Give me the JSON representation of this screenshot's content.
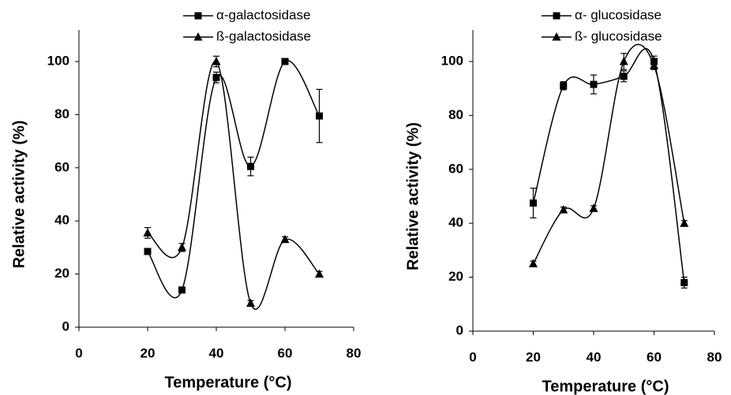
{
  "chart_data": [
    {
      "type": "line",
      "x_label": "Temperature (°C)",
      "y_label": "Relative activity (%)",
      "x": [
        20,
        30,
        40,
        50,
        60,
        70
      ],
      "xlim": [
        0,
        80
      ],
      "xticks": [
        0,
        20,
        40,
        60,
        80
      ],
      "ylim": [
        0,
        100
      ],
      "yticks": [
        0,
        20,
        40,
        60,
        80,
        100
      ],
      "series": [
        {
          "name": "α-galactosidase",
          "color": "#000000",
          "marker": "square",
          "values": [
            28.5,
            14,
            94,
            60.5,
            100,
            79.5
          ],
          "errors": [
            0.5,
            0.5,
            2,
            3.5,
            0.5,
            10
          ]
        },
        {
          "name": "ß-galactosidase",
          "color": "#000000",
          "marker": "triangle",
          "values": [
            35.5,
            30,
            100,
            9,
            33,
            20
          ],
          "errors": [
            2,
            1.5,
            2,
            1,
            1,
            1
          ]
        }
      ]
    },
    {
      "type": "line",
      "x_label": "Temperature (°C)",
      "y_label": "Relative activity (%)",
      "x": [
        20,
        30,
        40,
        50,
        60,
        70
      ],
      "xlim": [
        0,
        80
      ],
      "xticks": [
        0,
        20,
        40,
        60,
        80
      ],
      "ylim": [
        0,
        100
      ],
      "yticks": [
        0,
        20,
        40,
        60,
        80,
        100
      ],
      "series": [
        {
          "name": "α- glucosidase",
          "color": "#000000",
          "marker": "square",
          "values": [
            47.5,
            91,
            91.5,
            94.5,
            100,
            18
          ],
          "errors": [
            5.5,
            1.5,
            3.5,
            2,
            2,
            2
          ]
        },
        {
          "name": "ß- glucosidase",
          "color": "#000000",
          "marker": "triangle",
          "values": [
            25,
            45,
            45.5,
            100,
            98.5,
            40
          ],
          "errors": [
            1,
            1,
            1,
            3,
            1.5,
            1
          ]
        }
      ]
    }
  ]
}
